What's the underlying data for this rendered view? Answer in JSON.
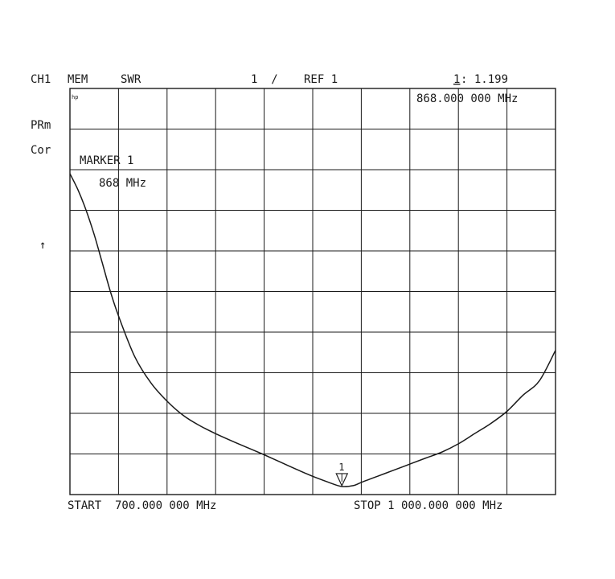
{
  "colors": {
    "background": "#ffffff",
    "trace": "#1a1a1a",
    "grid": "#1a1a1a"
  },
  "header": {
    "channel": "CH1",
    "mode": "MEM",
    "format": "SWR",
    "scale": "1  /",
    "ref": "REF 1",
    "marker_index": "1",
    "marker_value": ": 1.199",
    "marker_freq": "868.000 000 MHz"
  },
  "side": {
    "prm": "PRm",
    "cor": "Cor",
    "ref_arrow": "↑"
  },
  "annotations": {
    "hp": "hp",
    "marker_title": "MARKER 1",
    "marker_freq": "868 MHz",
    "marker_flag": "1"
  },
  "footer": {
    "start": "START  700.000 000 MHz",
    "stop": "STOP 1 000.000 000 MHz"
  },
  "chart_data": {
    "type": "line",
    "title": "SWR",
    "xlabel": "",
    "ylabel": "",
    "xlim": [
      700,
      1000
    ],
    "ylim": [
      1,
      11
    ],
    "grid": true,
    "x_units": "MHz",
    "series": [
      {
        "x": [
          700,
          705,
          710,
          715,
          720,
          725,
          730,
          740,
          750,
          760,
          770,
          780,
          790,
          800,
          810,
          820,
          830,
          840,
          850,
          860,
          868,
          875,
          880,
          890,
          900,
          910,
          920,
          930,
          940,
          950,
          960,
          970,
          980,
          990,
          1000
        ],
        "values": [
          8.9,
          8.5,
          8.0,
          7.4,
          6.7,
          6.0,
          5.4,
          4.4,
          3.75,
          3.3,
          2.95,
          2.7,
          2.5,
          2.32,
          2.15,
          1.98,
          1.8,
          1.62,
          1.45,
          1.3,
          1.199,
          1.22,
          1.3,
          1.45,
          1.6,
          1.75,
          1.9,
          2.05,
          2.25,
          2.5,
          2.75,
          3.05,
          3.45,
          3.8,
          4.55
        ]
      }
    ],
    "marker": {
      "x": 868,
      "y": 1.199,
      "label": "1"
    }
  }
}
